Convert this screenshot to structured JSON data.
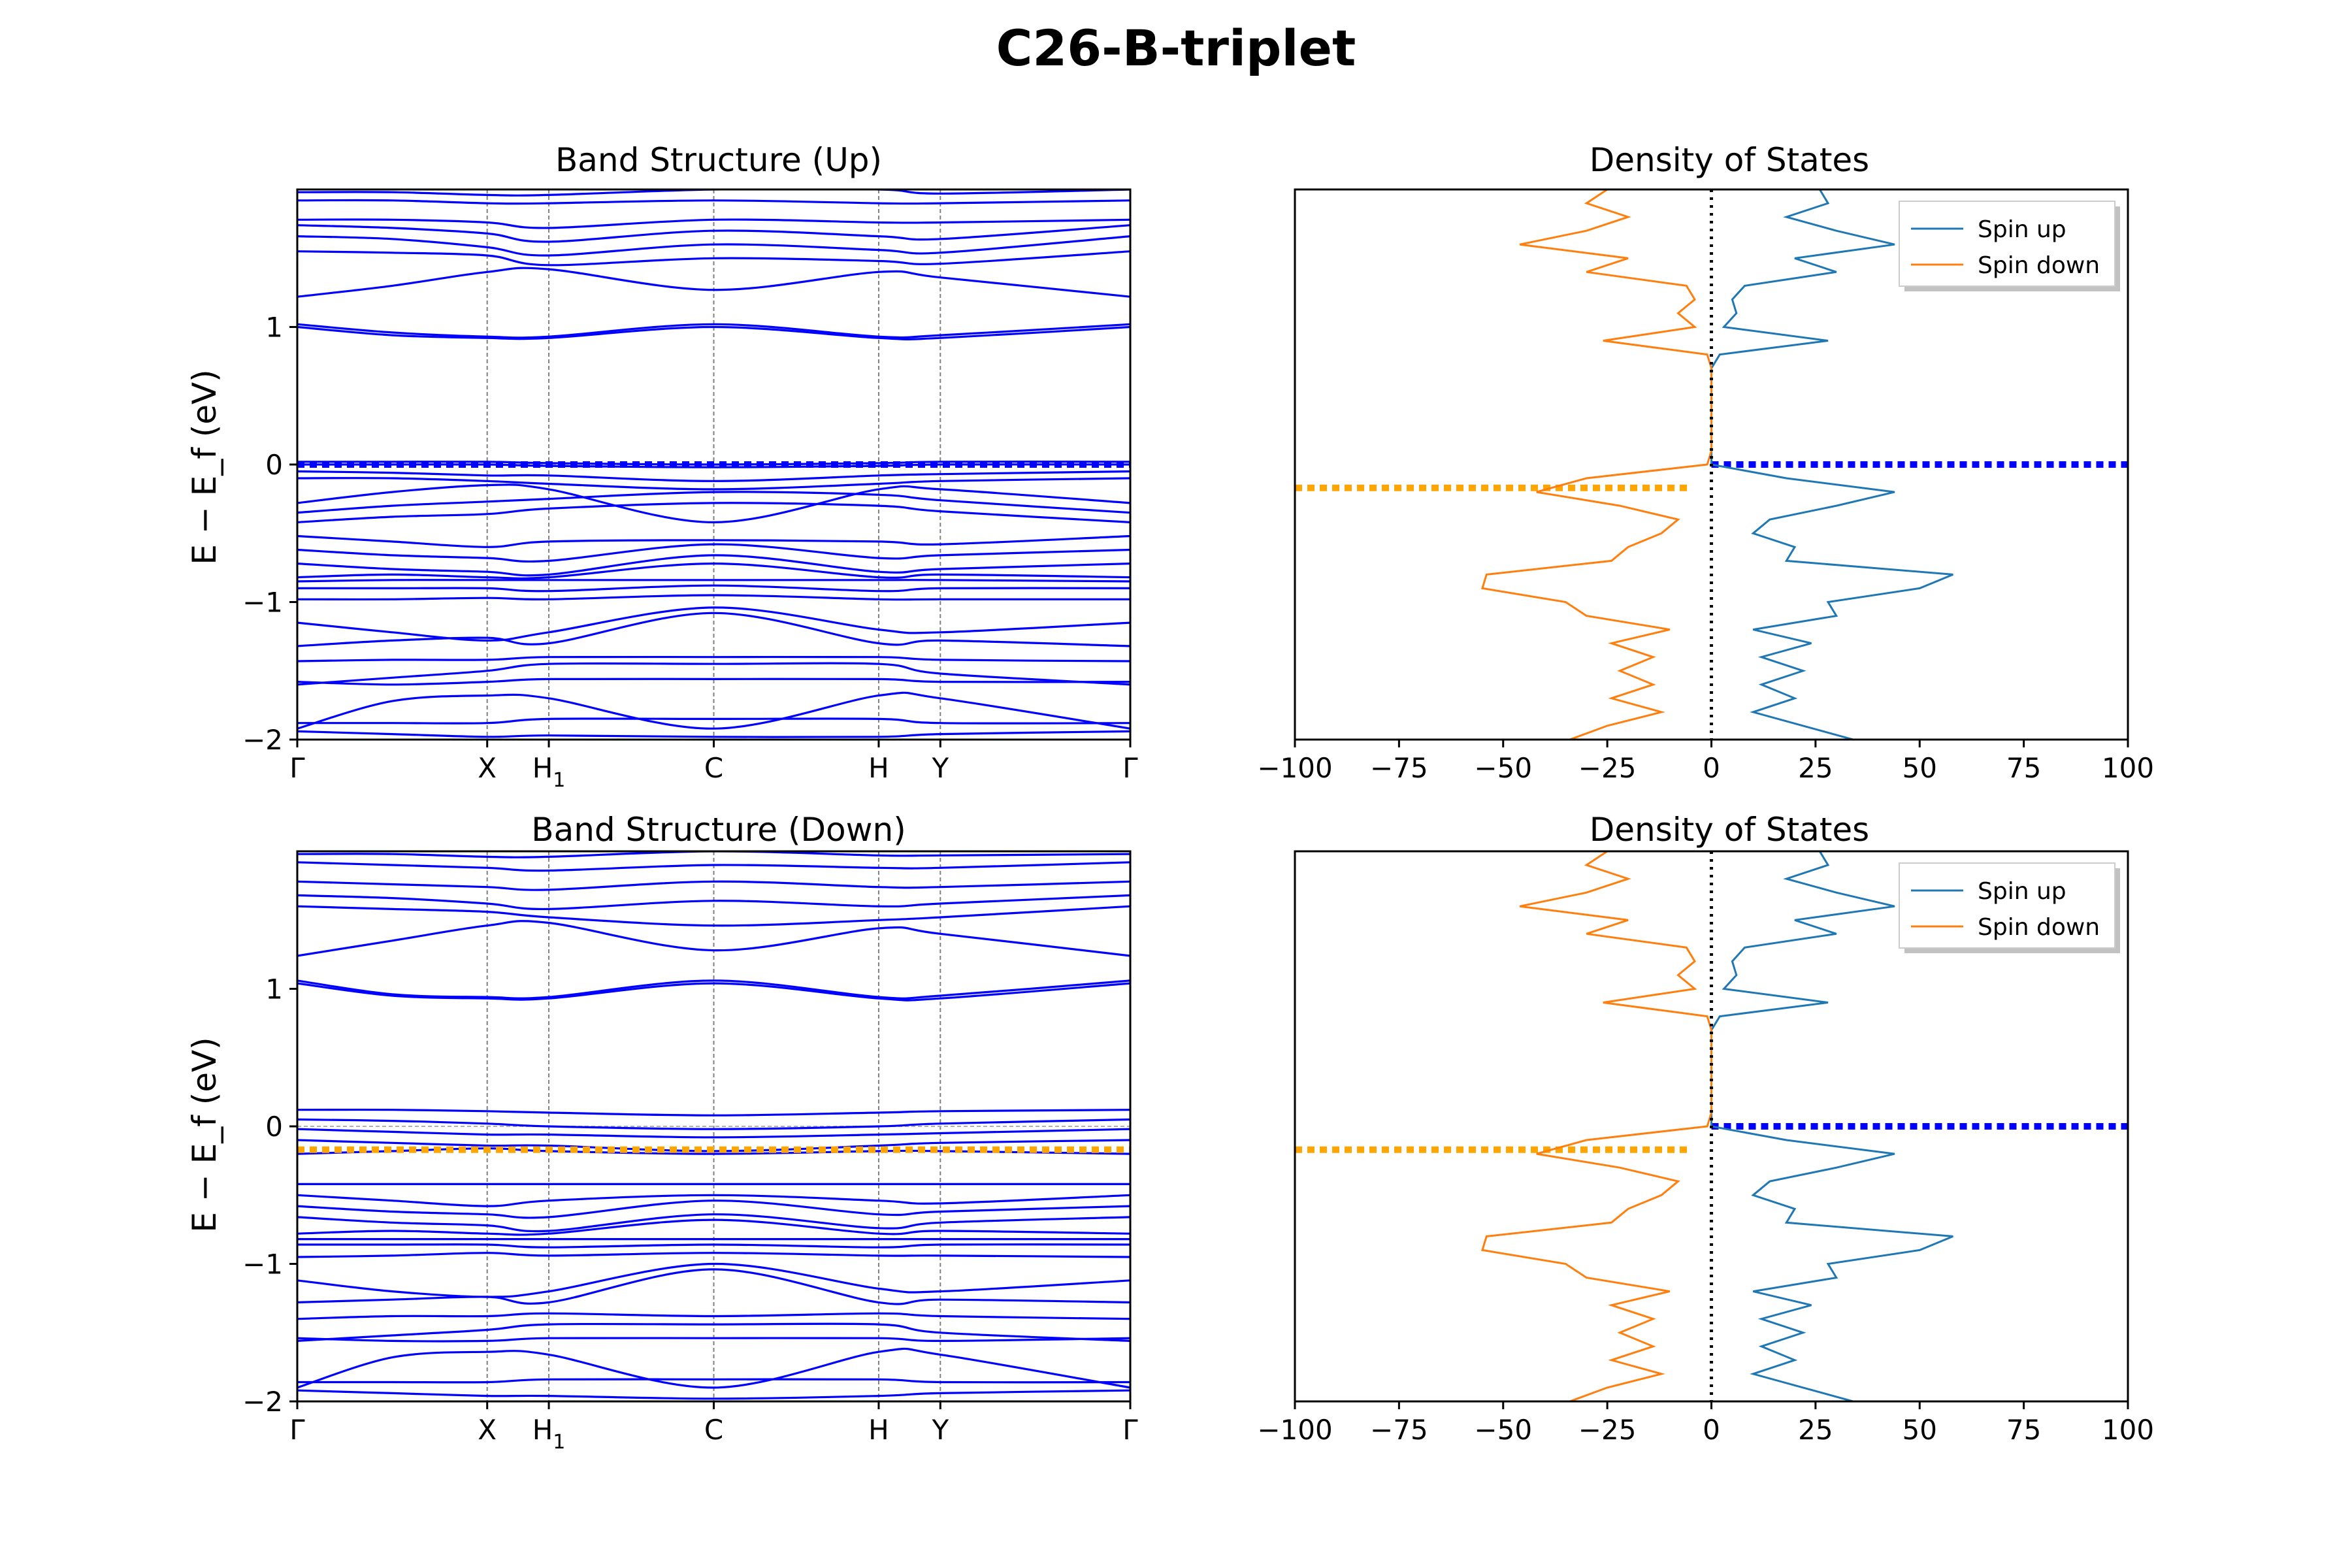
{
  "figure": {
    "title": "C26-B-triplet"
  },
  "chart_data": [
    {
      "type": "line",
      "title": "Band Structure (Up)",
      "ylabel": "E − E_f (eV)",
      "ylim": [
        -2,
        2
      ],
      "yticks": [
        "−2",
        "−1",
        "0",
        "1"
      ],
      "kpoints": [
        "Γ",
        "X",
        "H1",
        "C",
        "H",
        "Y",
        "Γ"
      ],
      "kpoint_positions": [
        0,
        0.228,
        0.302,
        0.5,
        0.698,
        0.772,
        1
      ],
      "fermi_line": {
        "energy": 0.0,
        "color": "#0000ff"
      },
      "band_color": "#0000ff",
      "bands": [
        [
          1.98,
          1.98,
          1.96,
          1.96,
          2.0,
          2.0,
          1.97,
          2.0
        ],
        [
          1.92,
          1.92,
          1.9,
          1.9,
          1.92,
          1.9,
          1.9,
          1.92
        ],
        [
          1.78,
          1.78,
          1.76,
          1.72,
          1.78,
          1.76,
          1.76,
          1.78
        ],
        [
          1.74,
          1.72,
          1.68,
          1.62,
          1.7,
          1.66,
          1.64,
          1.74
        ],
        [
          1.66,
          1.64,
          1.58,
          1.52,
          1.6,
          1.56,
          1.54,
          1.66
        ],
        [
          1.55,
          1.54,
          1.52,
          1.45,
          1.5,
          1.48,
          1.46,
          1.55
        ],
        [
          1.22,
          1.3,
          1.4,
          1.42,
          1.27,
          1.4,
          1.36,
          1.22
        ],
        [
          1.02,
          0.96,
          0.93,
          0.93,
          1.02,
          0.93,
          0.94,
          1.02
        ],
        [
          1.0,
          0.94,
          0.92,
          0.92,
          1.0,
          0.92,
          0.92,
          1.0
        ],
        [
          0.02,
          0.02,
          0.02,
          0.01,
          0.0,
          0.01,
          0.02,
          0.02
        ],
        [
          0.0,
          0.0,
          0.0,
          -0.01,
          -0.02,
          -0.01,
          0.0,
          0.0
        ],
        [
          -0.05,
          -0.06,
          -0.08,
          -0.08,
          -0.12,
          -0.08,
          -0.07,
          -0.05
        ],
        [
          -0.1,
          -0.1,
          -0.12,
          -0.14,
          -0.18,
          -0.14,
          -0.12,
          -0.1
        ],
        [
          -0.28,
          -0.2,
          -0.15,
          -0.18,
          -0.42,
          -0.18,
          -0.18,
          -0.28
        ],
        [
          -0.35,
          -0.3,
          -0.27,
          -0.25,
          -0.2,
          -0.22,
          -0.26,
          -0.35
        ],
        [
          -0.42,
          -0.38,
          -0.36,
          -0.32,
          -0.28,
          -0.3,
          -0.34,
          -0.42
        ],
        [
          -0.52,
          -0.56,
          -0.6,
          -0.56,
          -0.55,
          -0.56,
          -0.58,
          -0.52
        ],
        [
          -0.62,
          -0.66,
          -0.68,
          -0.7,
          -0.58,
          -0.68,
          -0.66,
          -0.62
        ],
        [
          -0.72,
          -0.76,
          -0.78,
          -0.8,
          -0.66,
          -0.78,
          -0.76,
          -0.72
        ],
        [
          -0.82,
          -0.8,
          -0.82,
          -0.82,
          -0.72,
          -0.82,
          -0.8,
          -0.82
        ],
        [
          -0.85,
          -0.84,
          -0.84,
          -0.84,
          -0.84,
          -0.84,
          -0.84,
          -0.85
        ],
        [
          -0.9,
          -0.9,
          -0.9,
          -0.92,
          -0.88,
          -0.92,
          -0.9,
          -0.9
        ],
        [
          -0.98,
          -0.98,
          -0.97,
          -0.98,
          -0.95,
          -0.98,
          -0.98,
          -0.98
        ],
        [
          -1.15,
          -1.22,
          -1.28,
          -1.22,
          -1.04,
          -1.2,
          -1.22,
          -1.15
        ],
        [
          -1.32,
          -1.28,
          -1.26,
          -1.3,
          -1.08,
          -1.3,
          -1.28,
          -1.32
        ],
        [
          -1.43,
          -1.42,
          -1.42,
          -1.4,
          -1.4,
          -1.4,
          -1.42,
          -1.43
        ],
        [
          -1.6,
          -1.55,
          -1.5,
          -1.45,
          -1.45,
          -1.45,
          -1.52,
          -1.6
        ],
        [
          -1.58,
          -1.6,
          -1.58,
          -1.56,
          -1.56,
          -1.56,
          -1.58,
          -1.58
        ],
        [
          -1.92,
          -1.72,
          -1.68,
          -1.7,
          -1.92,
          -1.68,
          -1.7,
          -1.92
        ],
        [
          -1.88,
          -1.88,
          -1.88,
          -1.85,
          -1.85,
          -1.85,
          -1.88,
          -1.88
        ],
        [
          -1.94,
          -1.96,
          -1.98,
          -1.97,
          -1.98,
          -1.98,
          -1.96,
          -1.94
        ]
      ]
    },
    {
      "type": "line",
      "title": "Density of States",
      "xlim": [
        -100,
        100
      ],
      "ylim": [
        -2,
        2
      ],
      "xticks": [
        "−100",
        "−75",
        "−50",
        "−25",
        "0",
        "25",
        "50",
        "75",
        "100"
      ],
      "legend": {
        "position": "upper right",
        "entries": [
          "Spin up",
          "Spin down"
        ]
      },
      "fermi_levels": [
        {
          "energy": 0.0,
          "color": "#0000ff",
          "side": "spin-up"
        },
        {
          "energy": -0.17,
          "color": "#ffa500",
          "side": "spin-down"
        }
      ],
      "series": [
        {
          "name": "Spin up",
          "color": "#1f77b4",
          "energy": [
            -2.0,
            -1.9,
            -1.8,
            -1.7,
            -1.6,
            -1.5,
            -1.4,
            -1.3,
            -1.2,
            -1.1,
            -1.0,
            -0.9,
            -0.8,
            -0.7,
            -0.6,
            -0.5,
            -0.4,
            -0.3,
            -0.2,
            -0.1,
            0.0,
            0.1,
            0.2,
            0.3,
            0.4,
            0.5,
            0.6,
            0.7,
            0.8,
            0.9,
            1.0,
            1.1,
            1.2,
            1.3,
            1.4,
            1.5,
            1.6,
            1.7,
            1.8,
            1.9,
            2.0
          ],
          "dos": [
            34,
            22,
            10,
            20,
            12,
            22,
            12,
            24,
            10,
            30,
            28,
            50,
            58,
            18,
            20,
            10,
            14,
            30,
            44,
            18,
            0,
            0,
            0,
            0,
            0,
            0,
            0,
            0,
            2,
            28,
            3,
            6,
            5,
            8,
            30,
            20,
            44,
            30,
            18,
            28,
            26
          ]
        },
        {
          "name": "Spin down",
          "color": "#ff7f0e",
          "energy": [
            -2.0,
            -1.9,
            -1.8,
            -1.7,
            -1.6,
            -1.5,
            -1.4,
            -1.3,
            -1.2,
            -1.1,
            -1.0,
            -0.9,
            -0.8,
            -0.7,
            -0.6,
            -0.5,
            -0.4,
            -0.3,
            -0.2,
            -0.1,
            0.0,
            0.1,
            0.2,
            0.3,
            0.4,
            0.5,
            0.6,
            0.7,
            0.8,
            0.9,
            1.0,
            1.1,
            1.2,
            1.3,
            1.4,
            1.5,
            1.6,
            1.7,
            1.8,
            1.9,
            2.0
          ],
          "dos": [
            -34,
            -25,
            -12,
            -24,
            -14,
            -22,
            -14,
            -24,
            -10,
            -30,
            -35,
            -55,
            -54,
            -24,
            -20,
            -12,
            -8,
            -22,
            -42,
            -30,
            -1,
            0,
            0,
            0,
            0,
            0,
            0,
            0,
            -1,
            -26,
            -4,
            -8,
            -4,
            -6,
            -30,
            -20,
            -46,
            -30,
            -20,
            -30,
            -25
          ]
        }
      ]
    },
    {
      "type": "line",
      "title": "Band Structure (Down)",
      "ylabel": "E − E_f (eV)",
      "ylim": [
        -2,
        2
      ],
      "yticks": [
        "−2",
        "−1",
        "0",
        "1"
      ],
      "kpoints": [
        "Γ",
        "X",
        "H1",
        "C",
        "H",
        "Y",
        "Γ"
      ],
      "kpoint_positions": [
        0,
        0.228,
        0.302,
        0.5,
        0.698,
        0.772,
        1
      ],
      "fermi_line": {
        "energy": -0.17,
        "color": "#ffa500"
      },
      "band_color": "#0000ff",
      "bands": [
        [
          1.98,
          1.98,
          1.96,
          1.96,
          2.0,
          1.97,
          1.97,
          1.98
        ],
        [
          1.92,
          1.9,
          1.88,
          1.86,
          1.9,
          1.88,
          1.88,
          1.92
        ],
        [
          1.78,
          1.76,
          1.74,
          1.72,
          1.78,
          1.74,
          1.74,
          1.78
        ],
        [
          1.68,
          1.66,
          1.62,
          1.58,
          1.64,
          1.6,
          1.62,
          1.68
        ],
        [
          1.6,
          1.58,
          1.56,
          1.52,
          1.46,
          1.5,
          1.52,
          1.6
        ],
        [
          1.24,
          1.35,
          1.46,
          1.48,
          1.28,
          1.44,
          1.4,
          1.24
        ],
        [
          1.06,
          0.96,
          0.94,
          0.94,
          1.06,
          0.94,
          0.95,
          1.06
        ],
        [
          1.04,
          0.95,
          0.93,
          0.93,
          1.04,
          0.93,
          0.93,
          1.04
        ],
        [
          0.12,
          0.12,
          0.11,
          0.1,
          0.08,
          0.1,
          0.11,
          0.12
        ],
        [
          0.05,
          0.04,
          0.02,
          0.0,
          -0.02,
          0.0,
          0.02,
          0.05
        ],
        [
          -0.02,
          -0.04,
          -0.06,
          -0.06,
          -0.08,
          -0.06,
          -0.05,
          -0.02
        ],
        [
          -0.1,
          -0.12,
          -0.14,
          -0.14,
          -0.18,
          -0.14,
          -0.12,
          -0.1
        ],
        [
          -0.2,
          -0.18,
          -0.16,
          -0.18,
          -0.2,
          -0.18,
          -0.18,
          -0.2
        ],
        [
          -0.42,
          -0.42,
          -0.42,
          -0.42,
          -0.42,
          -0.42,
          -0.42,
          -0.42
        ],
        [
          -0.5,
          -0.54,
          -0.58,
          -0.54,
          -0.5,
          -0.54,
          -0.56,
          -0.5
        ],
        [
          -0.58,
          -0.62,
          -0.64,
          -0.66,
          -0.54,
          -0.64,
          -0.62,
          -0.58
        ],
        [
          -0.66,
          -0.7,
          -0.72,
          -0.76,
          -0.64,
          -0.74,
          -0.7,
          -0.66
        ],
        [
          -0.78,
          -0.76,
          -0.78,
          -0.78,
          -0.68,
          -0.78,
          -0.76,
          -0.78
        ],
        [
          -0.82,
          -0.82,
          -0.82,
          -0.82,
          -0.82,
          -0.82,
          -0.82,
          -0.82
        ],
        [
          -0.86,
          -0.86,
          -0.86,
          -0.88,
          -0.86,
          -0.88,
          -0.86,
          -0.86
        ],
        [
          -0.95,
          -0.94,
          -0.92,
          -0.94,
          -0.92,
          -0.94,
          -0.94,
          -0.95
        ],
        [
          -1.12,
          -1.2,
          -1.24,
          -1.2,
          -1.0,
          -1.18,
          -1.2,
          -1.12
        ],
        [
          -1.28,
          -1.26,
          -1.24,
          -1.28,
          -1.04,
          -1.28,
          -1.26,
          -1.28
        ],
        [
          -1.4,
          -1.38,
          -1.38,
          -1.36,
          -1.38,
          -1.36,
          -1.38,
          -1.4
        ],
        [
          -1.56,
          -1.52,
          -1.48,
          -1.44,
          -1.44,
          -1.44,
          -1.5,
          -1.56
        ],
        [
          -1.54,
          -1.56,
          -1.56,
          -1.54,
          -1.54,
          -1.54,
          -1.56,
          -1.54
        ],
        [
          -1.9,
          -1.68,
          -1.64,
          -1.66,
          -1.9,
          -1.64,
          -1.66,
          -1.9
        ],
        [
          -1.86,
          -1.86,
          -1.86,
          -1.84,
          -1.84,
          -1.84,
          -1.86,
          -1.86
        ],
        [
          -1.92,
          -1.94,
          -1.96,
          -1.96,
          -1.98,
          -1.96,
          -1.94,
          -1.92
        ]
      ]
    },
    {
      "type": "line",
      "title": "Density of States",
      "xlim": [
        -100,
        100
      ],
      "ylim": [
        -2,
        2
      ],
      "xticks": [
        "−100",
        "−75",
        "−50",
        "−25",
        "0",
        "25",
        "50",
        "75",
        "100"
      ],
      "legend": {
        "position": "upper right",
        "entries": [
          "Spin up",
          "Spin down"
        ]
      },
      "fermi_levels": [
        {
          "energy": 0.0,
          "color": "#0000ff",
          "side": "spin-up"
        },
        {
          "energy": -0.17,
          "color": "#ffa500",
          "side": "spin-down"
        }
      ],
      "series": [
        {
          "name": "Spin up",
          "color": "#1f77b4",
          "energy": [
            -2.0,
            -1.9,
            -1.8,
            -1.7,
            -1.6,
            -1.5,
            -1.4,
            -1.3,
            -1.2,
            -1.1,
            -1.0,
            -0.9,
            -0.8,
            -0.7,
            -0.6,
            -0.5,
            -0.4,
            -0.3,
            -0.2,
            -0.1,
            0.0,
            0.1,
            0.2,
            0.3,
            0.4,
            0.5,
            0.6,
            0.7,
            0.8,
            0.9,
            1.0,
            1.1,
            1.2,
            1.3,
            1.4,
            1.5,
            1.6,
            1.7,
            1.8,
            1.9,
            2.0
          ],
          "dos": [
            34,
            22,
            10,
            20,
            12,
            22,
            12,
            24,
            10,
            30,
            28,
            50,
            58,
            18,
            20,
            10,
            14,
            30,
            44,
            18,
            0,
            0,
            0,
            0,
            0,
            0,
            0,
            0,
            2,
            28,
            3,
            6,
            5,
            8,
            30,
            20,
            44,
            30,
            18,
            28,
            26
          ]
        },
        {
          "name": "Spin down",
          "color": "#ff7f0e",
          "energy": [
            -2.0,
            -1.9,
            -1.8,
            -1.7,
            -1.6,
            -1.5,
            -1.4,
            -1.3,
            -1.2,
            -1.1,
            -1.0,
            -0.9,
            -0.8,
            -0.7,
            -0.6,
            -0.5,
            -0.4,
            -0.3,
            -0.2,
            -0.1,
            0.0,
            0.1,
            0.2,
            0.3,
            0.4,
            0.5,
            0.6,
            0.7,
            0.8,
            0.9,
            1.0,
            1.1,
            1.2,
            1.3,
            1.4,
            1.5,
            1.6,
            1.7,
            1.8,
            1.9,
            2.0
          ],
          "dos": [
            -34,
            -25,
            -12,
            -24,
            -14,
            -22,
            -14,
            -24,
            -10,
            -30,
            -35,
            -55,
            -54,
            -24,
            -20,
            -12,
            -8,
            -22,
            -42,
            -30,
            -1,
            0,
            0,
            0,
            0,
            0,
            0,
            0,
            -1,
            -26,
            -4,
            -8,
            -4,
            -6,
            -30,
            -20,
            -46,
            -30,
            -20,
            -30,
            -25
          ]
        }
      ]
    }
  ]
}
